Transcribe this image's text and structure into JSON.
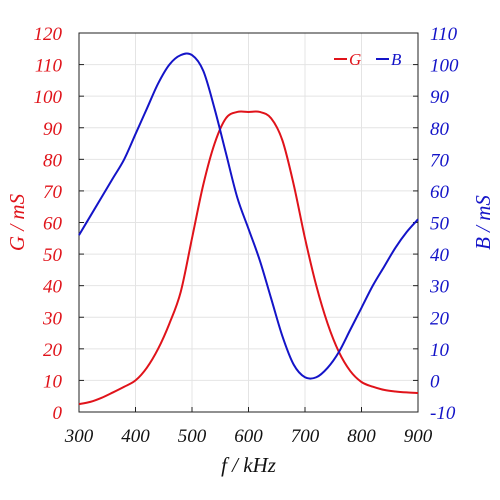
{
  "chart_data": {
    "type": "line",
    "xlabel": "f / kHz",
    "x": [
      300,
      320,
      340,
      360,
      380,
      400,
      420,
      440,
      460,
      480,
      500,
      520,
      540,
      560,
      580,
      600,
      620,
      640,
      660,
      680,
      700,
      720,
      740,
      760,
      780,
      800,
      820,
      840,
      860,
      880,
      900
    ],
    "xlim": [
      300,
      900
    ],
    "xticks": [
      300,
      400,
      500,
      600,
      700,
      800,
      900
    ],
    "y_left": {
      "label": "G / mS",
      "lim": [
        0,
        120
      ],
      "ticks": [
        0,
        10,
        20,
        30,
        40,
        50,
        60,
        70,
        80,
        90,
        100,
        110,
        120
      ],
      "color": "#e0131a"
    },
    "y_right": {
      "label": "B / mS",
      "lim": [
        -10,
        110
      ],
      "ticks": [
        -10,
        0,
        10,
        20,
        30,
        40,
        50,
        60,
        70,
        80,
        90,
        100,
        110
      ],
      "color": "#1414c8"
    },
    "series": [
      {
        "name": "G",
        "axis": "left",
        "color": "#e0131a",
        "values": [
          2.5,
          3.2,
          4.5,
          6.2,
          8,
          10,
          14,
          20,
          28,
          38,
          55,
          72,
          85,
          93,
          95,
          95,
          95,
          93,
          86,
          72,
          55,
          40,
          28,
          19,
          13,
          9.5,
          8,
          7,
          6.5,
          6.2,
          6
        ]
      },
      {
        "name": "B",
        "axis": "right",
        "color": "#1414c8",
        "values": [
          46,
          52,
          58,
          64,
          70,
          78,
          86,
          94,
          100,
          103,
          103,
          98,
          86,
          72,
          58,
          48,
          38,
          26,
          14,
          5,
          1,
          1,
          4,
          9,
          16,
          23,
          30,
          36,
          42,
          47,
          51
        ]
      }
    ],
    "grid": true,
    "legend_position": "top-right"
  }
}
